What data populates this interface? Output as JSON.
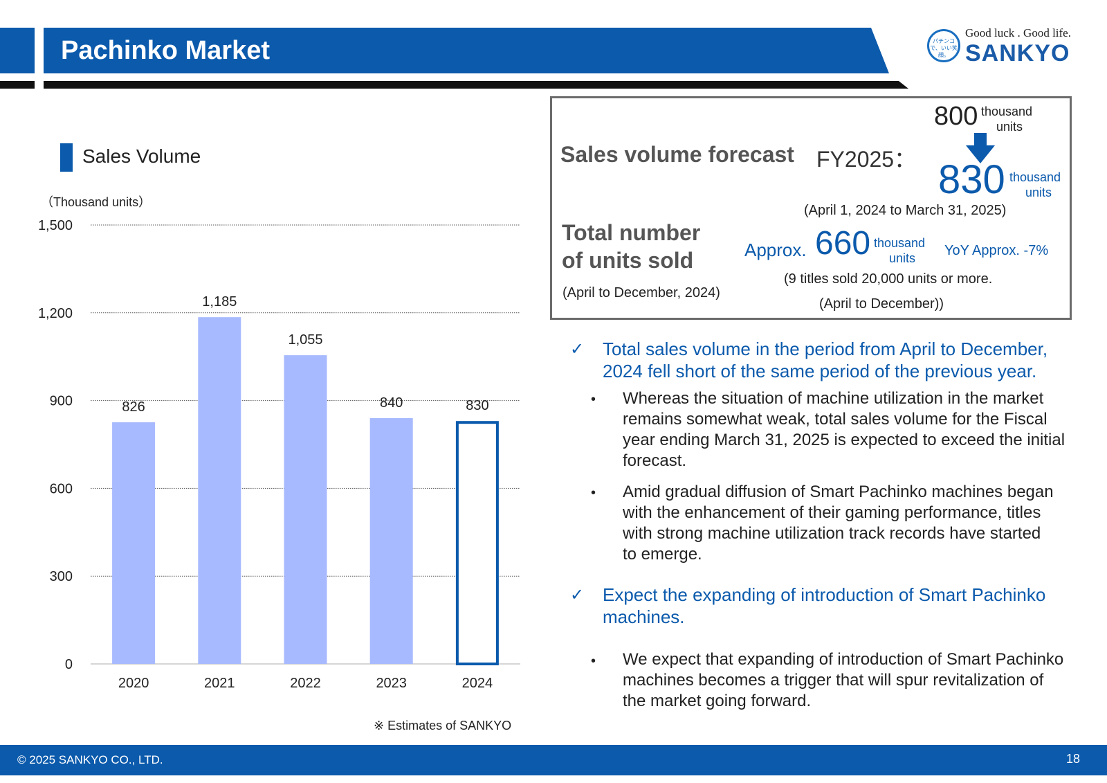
{
  "header": {
    "title": "Pachinko Market"
  },
  "logo": {
    "tagline": "Good luck . Good life.",
    "name": "SANKYO",
    "emblem_text": "パチンコで、いい笑顔。"
  },
  "chart_section": {
    "title": "Sales Volume",
    "unit_label": "（Thousand units）",
    "note": "※ Estimates of SANKYO"
  },
  "chart_data": {
    "type": "bar",
    "title": "Sales Volume",
    "ylabel": "（Thousand units）",
    "xlabel": "",
    "categories": [
      "2020",
      "2021",
      "2022",
      "2023",
      "2024"
    ],
    "values": [
      826,
      1185,
      1055,
      840,
      830
    ],
    "value_labels": [
      "826",
      "1,185",
      "1,055",
      "840",
      "830"
    ],
    "estimate_flags": [
      false,
      false,
      false,
      false,
      true
    ],
    "ylim": [
      0,
      1500
    ],
    "yticks": [
      0,
      300,
      600,
      900,
      1200,
      1500
    ],
    "ytick_labels": [
      "0",
      "300",
      "600",
      "900",
      "1,200",
      "1,500"
    ],
    "grid": true,
    "colors": {
      "bar": "#a8baff",
      "estimate_outline": "#0b5aac",
      "grid": "#555555"
    }
  },
  "forecast_box": {
    "label": "Sales volume forecast",
    "period": "FY2025：",
    "prev_value": "800",
    "prev_unit_line1": "thousand",
    "prev_unit_line2": "units",
    "new_value": "830",
    "new_unit_line1": "thousand",
    "new_unit_line2": "units",
    "range": "(April 1, 2024 to March 31, 2025)",
    "total_label_line1": "Total number",
    "total_label_line2": "of units sold",
    "total_period": "(April to December, 2024)",
    "total_approx": "Approx.",
    "total_value": "660",
    "total_unit_line1": "thousand",
    "total_unit_line2": "units",
    "yoy": "YoY Approx. -7%",
    "note_line1": "(9 titles sold 20,000 units or more.",
    "note_line2": "(April to December))"
  },
  "bullets": {
    "check_symbol": "✓",
    "dot_symbol": "•",
    "point1": [
      "Total sales volume in the period from April to December,",
      "2024 fell short of the same period of the previous year."
    ],
    "point1_sub1": [
      "Whereas the situation of machine utilization in the market",
      "remains somewhat weak, total sales volume for the Fiscal",
      "year ending March 31, 2025 is expected to exceed the initial",
      "forecast."
    ],
    "point1_sub2": [
      "Amid gradual diffusion of Smart Pachinko machines began",
      "with the enhancement of their gaming performance, titles",
      "with strong machine utilization track records have started",
      "to emerge."
    ],
    "point2": [
      "Expect the expanding of introduction of Smart Pachinko",
      "machines."
    ],
    "point2_sub1": [
      "We expect that expanding of introduction of Smart Pachinko",
      "machines becomes a trigger that will spur revitalization of",
      "the market going forward."
    ]
  },
  "footer": {
    "copyright": "© 2025 SANKYO CO., LTD.",
    "page": "18"
  },
  "theme": {
    "brand_blue": "#0b5aac",
    "bar_fill": "#a8baff"
  }
}
